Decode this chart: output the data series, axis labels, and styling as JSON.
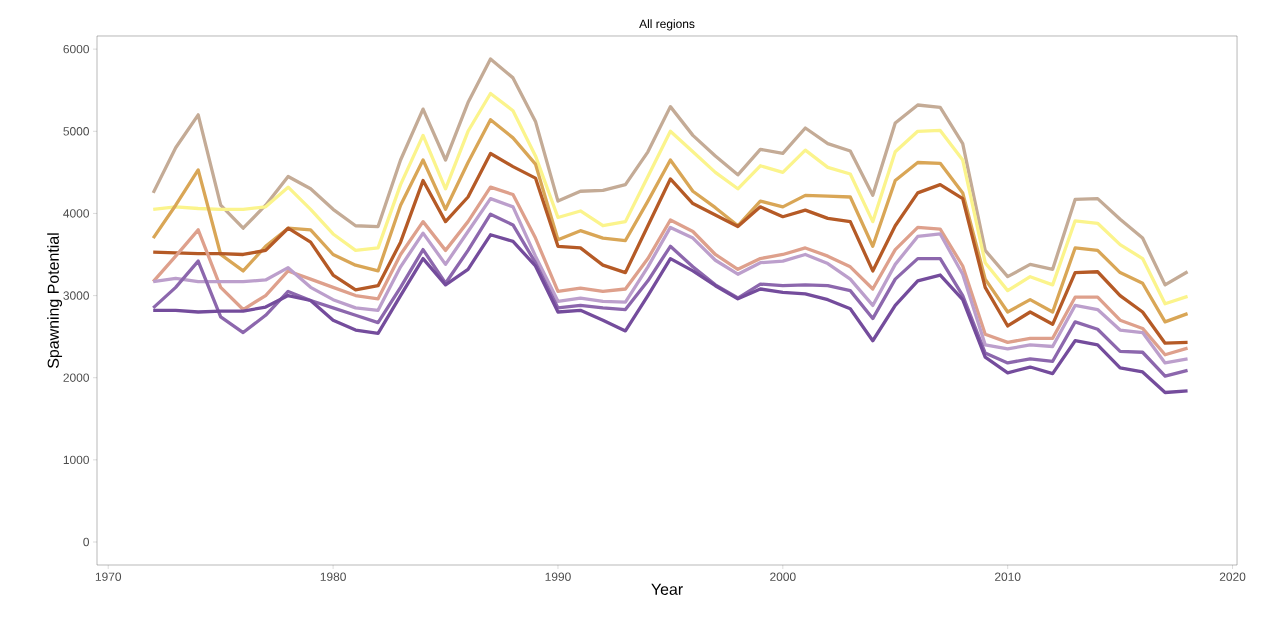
{
  "chart_data": {
    "type": "line",
    "title": "All regions",
    "xlabel": "Year",
    "ylabel": "Spawning Potential",
    "x": [
      1972,
      1973,
      1974,
      1975,
      1976,
      1977,
      1978,
      1979,
      1980,
      1981,
      1982,
      1983,
      1984,
      1985,
      1986,
      1987,
      1988,
      1989,
      1990,
      1991,
      1992,
      1993,
      1994,
      1995,
      1996,
      1997,
      1998,
      1999,
      2000,
      2001,
      2002,
      2003,
      2004,
      2005,
      2006,
      2007,
      2008,
      2009,
      2010,
      2011,
      2012,
      2013,
      2014,
      2015,
      2016,
      2017,
      2018
    ],
    "xlim": [
      1969.5,
      2020.2
    ],
    "xticks": [
      1970,
      1980,
      1990,
      2000,
      2010,
      2020
    ],
    "ylim": [
      -280,
      6160
    ],
    "yticks": [
      0,
      1000,
      2000,
      3000,
      4000,
      5000,
      6000
    ],
    "grid": false,
    "series": [
      {
        "color": "#c4ab96",
        "values": [
          4250,
          4800,
          5200,
          4100,
          3820,
          4100,
          4450,
          4300,
          4050,
          3850,
          3840,
          4650,
          5270,
          4650,
          5350,
          5880,
          5650,
          5120,
          4150,
          4270,
          4280,
          4350,
          4750,
          5300,
          4950,
          4700,
          4470,
          4780,
          4730,
          5040,
          4850,
          4760,
          4220,
          5100,
          5320,
          5290,
          4850,
          3550,
          3230,
          3380,
          3320,
          4170,
          4180,
          3930,
          3700,
          3130,
          3290
        ]
      },
      {
        "color": "#fbf48c",
        "values": [
          4050,
          4080,
          4060,
          4050,
          4050,
          4080,
          4320,
          4050,
          3750,
          3550,
          3580,
          4350,
          4950,
          4300,
          5000,
          5460,
          5250,
          4700,
          3950,
          4030,
          3850,
          3900,
          4450,
          5000,
          4750,
          4500,
          4300,
          4580,
          4500,
          4770,
          4560,
          4480,
          3900,
          4750,
          5000,
          5010,
          4650,
          3400,
          3060,
          3230,
          3130,
          3910,
          3880,
          3620,
          3450,
          2900,
          2990
        ]
      },
      {
        "color": "#d9a656",
        "values": [
          3700,
          4100,
          4530,
          3500,
          3300,
          3600,
          3820,
          3800,
          3500,
          3370,
          3300,
          4100,
          4650,
          4050,
          4620,
          5140,
          4920,
          4600,
          3680,
          3790,
          3700,
          3670,
          4150,
          4650,
          4270,
          4070,
          3850,
          4150,
          4080,
          4220,
          4210,
          4200,
          3600,
          4400,
          4620,
          4610,
          4250,
          3200,
          2800,
          2950,
          2800,
          3580,
          3550,
          3280,
          3150,
          2680,
          2780
        ]
      },
      {
        "color": "#b55a26",
        "values": [
          3530,
          3520,
          3510,
          3510,
          3500,
          3550,
          3820,
          3650,
          3250,
          3070,
          3120,
          3650,
          4400,
          3900,
          4200,
          4730,
          4570,
          4430,
          3600,
          3580,
          3370,
          3280,
          3850,
          4420,
          4120,
          3980,
          3840,
          4080,
          3960,
          4040,
          3940,
          3900,
          3300,
          3850,
          4250,
          4350,
          4180,
          3100,
          2630,
          2800,
          2650,
          3280,
          3290,
          3000,
          2800,
          2420,
          2430
        ]
      },
      {
        "color": "#dea08c",
        "values": [
          3170,
          3480,
          3800,
          3100,
          2830,
          3000,
          3300,
          3200,
          3100,
          3000,
          2960,
          3500,
          3900,
          3550,
          3900,
          4320,
          4230,
          3700,
          3050,
          3090,
          3050,
          3080,
          3450,
          3920,
          3780,
          3500,
          3320,
          3450,
          3500,
          3580,
          3480,
          3350,
          3080,
          3560,
          3830,
          3810,
          3360,
          2530,
          2430,
          2480,
          2480,
          2980,
          2980,
          2700,
          2600,
          2280,
          2360
        ]
      },
      {
        "color": "#bc9fcc",
        "values": [
          3170,
          3210,
          3170,
          3170,
          3170,
          3190,
          3340,
          3100,
          2950,
          2850,
          2820,
          3350,
          3760,
          3380,
          3780,
          4180,
          4080,
          3480,
          2930,
          2970,
          2930,
          2920,
          3350,
          3830,
          3700,
          3430,
          3260,
          3400,
          3420,
          3500,
          3390,
          3200,
          2880,
          3380,
          3720,
          3750,
          3260,
          2400,
          2350,
          2400,
          2380,
          2880,
          2830,
          2580,
          2550,
          2180,
          2230
        ]
      },
      {
        "color": "#8c67ad",
        "values": [
          2850,
          3100,
          3420,
          2740,
          2550,
          2760,
          3050,
          2940,
          2850,
          2760,
          2670,
          3100,
          3560,
          3150,
          3550,
          3990,
          3860,
          3400,
          2850,
          2880,
          2850,
          2830,
          3180,
          3600,
          3350,
          3130,
          2970,
          3140,
          3120,
          3130,
          3120,
          3060,
          2720,
          3200,
          3450,
          3450,
          3000,
          2300,
          2180,
          2230,
          2200,
          2680,
          2590,
          2320,
          2310,
          2020,
          2090
        ]
      },
      {
        "color": "#744c9c",
        "values": [
          2820,
          2820,
          2800,
          2810,
          2810,
          2860,
          3000,
          2940,
          2700,
          2580,
          2540,
          3000,
          3450,
          3130,
          3320,
          3740,
          3660,
          3360,
          2800,
          2820,
          2700,
          2570,
          3000,
          3450,
          3300,
          3120,
          2960,
          3080,
          3040,
          3020,
          2950,
          2840,
          2450,
          2880,
          3180,
          3250,
          2950,
          2250,
          2060,
          2130,
          2050,
          2450,
          2400,
          2120,
          2070,
          1820,
          1840
        ]
      }
    ]
  }
}
